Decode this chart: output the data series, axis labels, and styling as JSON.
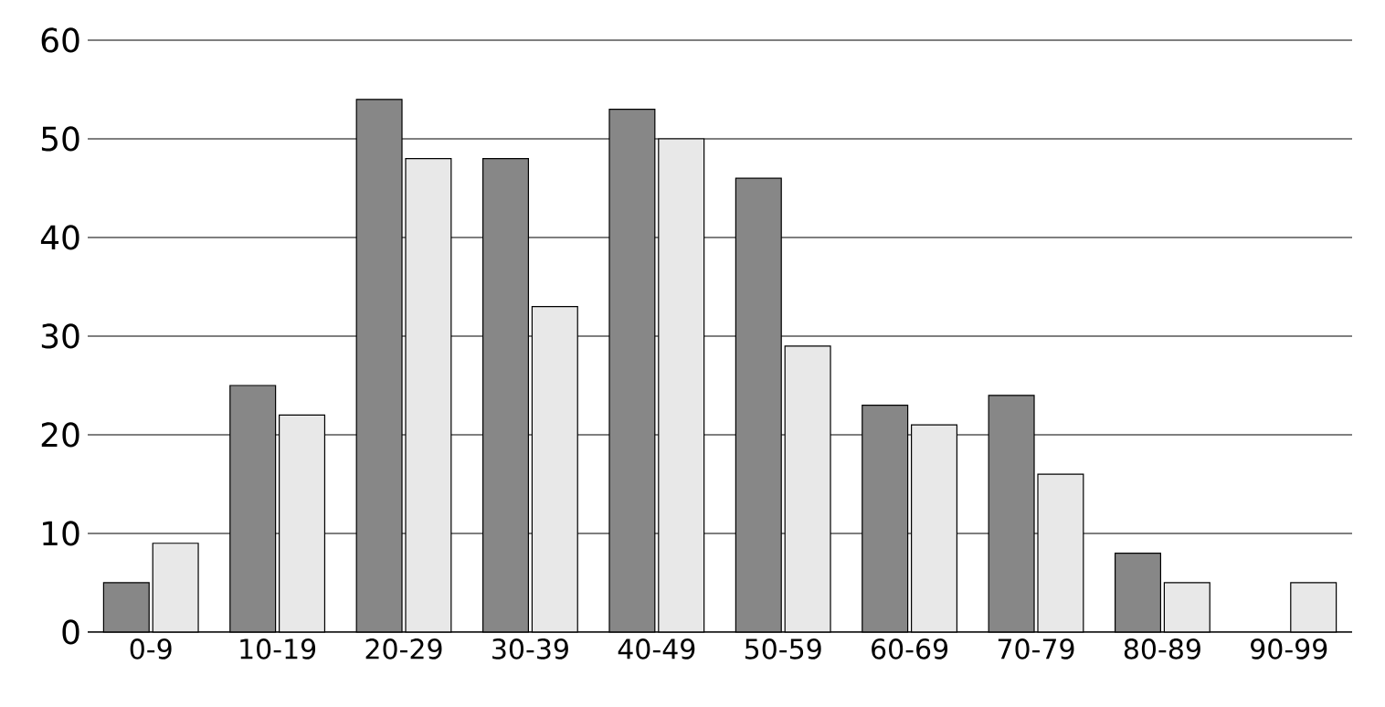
{
  "chart_data": {
    "type": "bar",
    "categories": [
      "0-9",
      "10-19",
      "20-29",
      "30-39",
      "40-49",
      "50-59",
      "60-69",
      "70-79",
      "80-89",
      "90-99"
    ],
    "series": [
      {
        "color": "#878787",
        "values": [
          5,
          25,
          54,
          48,
          53,
          46,
          23,
          24,
          8,
          null
        ]
      },
      {
        "color": "#e8e8e8",
        "values": [
          9,
          22,
          48,
          33,
          50,
          29,
          21,
          16,
          5,
          5
        ]
      }
    ],
    "ylim": [
      0,
      60
    ],
    "yticks": [
      0,
      10,
      20,
      30,
      40,
      50,
      60
    ],
    "grid": "y"
  }
}
